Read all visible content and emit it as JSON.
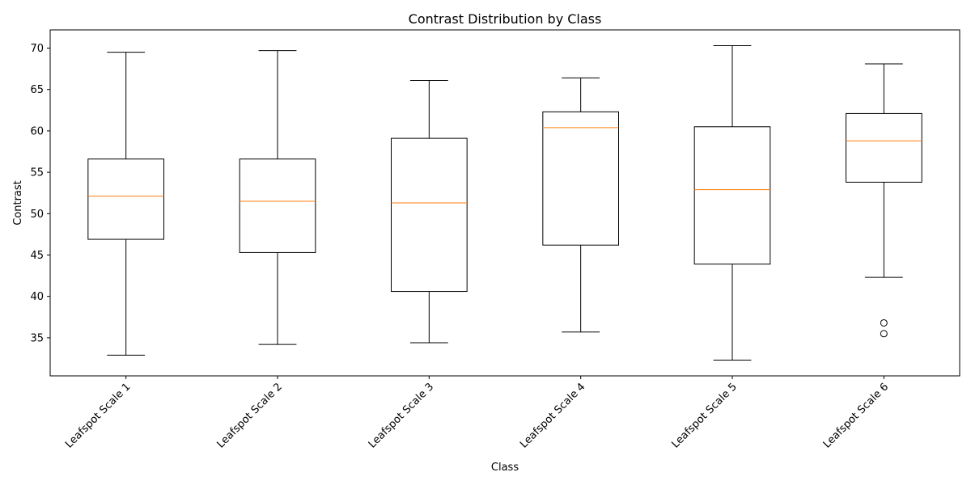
{
  "chart_data": {
    "type": "box",
    "title": "Contrast Distribution by Class",
    "xlabel": "Class",
    "ylabel": "Contrast",
    "ylim": [
      30.4,
      72.2
    ],
    "yticks": [
      35,
      40,
      45,
      50,
      55,
      60,
      65,
      70
    ],
    "grid": false,
    "categories": [
      "Leafspot Scale 1",
      "Leafspot Scale 2",
      "Leafspot Scale 3",
      "Leafspot Scale 4",
      "Leafspot Scale 5",
      "Leafspot Scale 6"
    ],
    "boxes": [
      {
        "whisker_low": 32.9,
        "q1": 46.9,
        "median": 52.1,
        "q3": 56.6,
        "whisker_high": 69.5,
        "outliers": []
      },
      {
        "whisker_low": 34.2,
        "q1": 45.3,
        "median": 51.5,
        "q3": 56.6,
        "whisker_high": 69.7,
        "outliers": []
      },
      {
        "whisker_low": 34.4,
        "q1": 40.6,
        "median": 51.3,
        "q3": 59.1,
        "whisker_high": 66.1,
        "outliers": []
      },
      {
        "whisker_low": 35.7,
        "q1": 46.2,
        "median": 60.4,
        "q3": 62.3,
        "whisker_high": 66.4,
        "outliers": []
      },
      {
        "whisker_low": 32.3,
        "q1": 43.9,
        "median": 52.9,
        "q3": 60.5,
        "whisker_high": 70.3,
        "outliers": []
      },
      {
        "whisker_low": 42.3,
        "q1": 53.8,
        "median": 58.8,
        "q3": 62.1,
        "whisker_high": 68.1,
        "outliers": [
          36.8,
          35.5
        ]
      }
    ],
    "colors": {
      "box": "#000000",
      "median": "#ff7f0e",
      "background": "#ffffff"
    }
  }
}
